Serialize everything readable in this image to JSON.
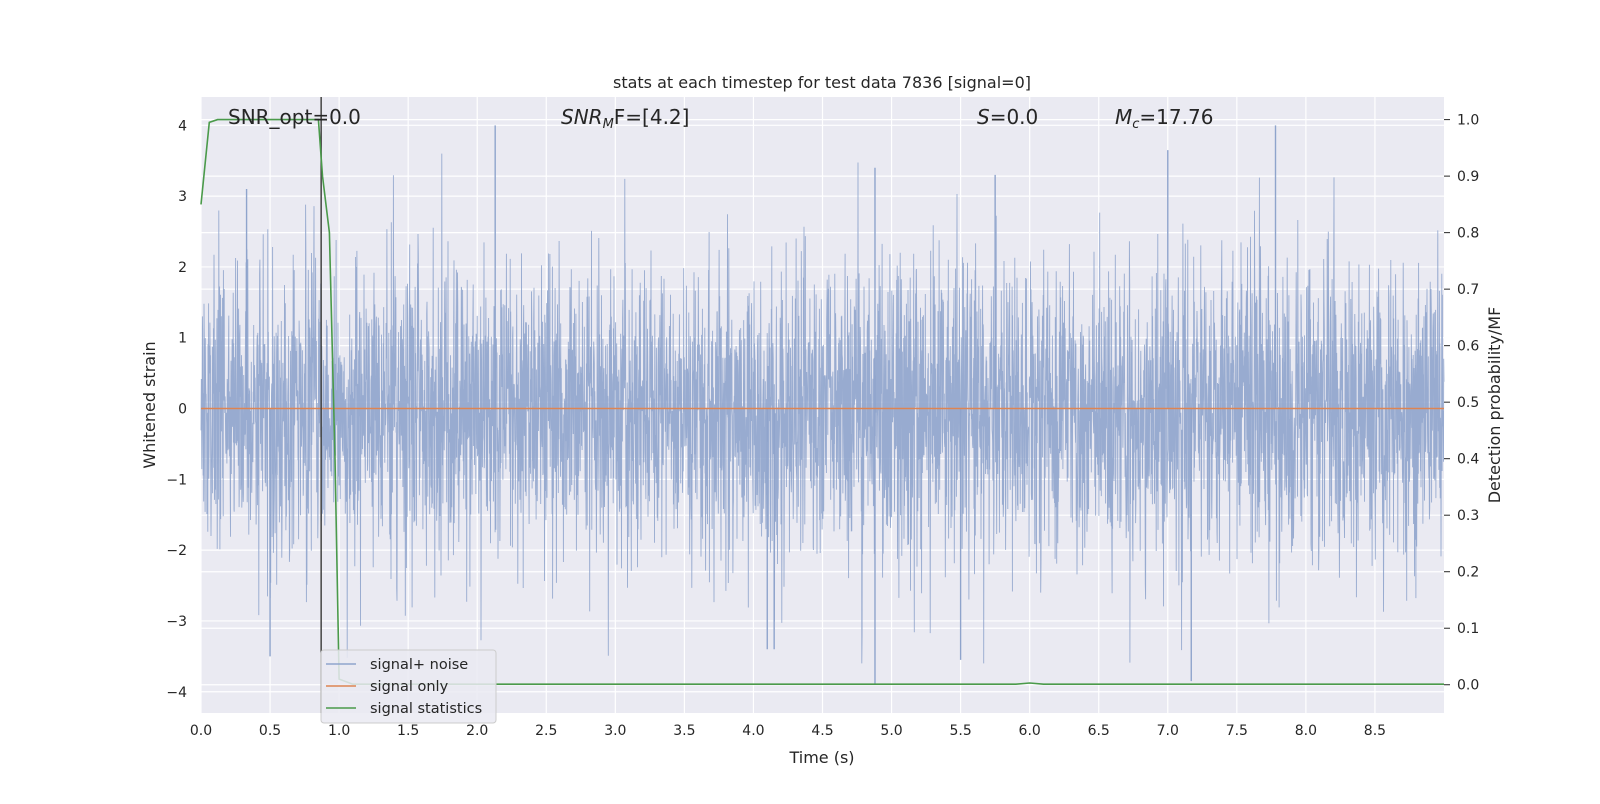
{
  "chart_data": {
    "type": "line",
    "title": "stats at each timestep for test data 7836 [signal=0]",
    "xlabel": "Time (s)",
    "ylabel_left": "Whitened strain",
    "ylabel_right": "Detection probability/MF",
    "xlim": [
      0.0,
      9.0
    ],
    "ylim_left": [
      -4.3,
      4.4
    ],
    "ylim_right": [
      -0.05,
      1.04
    ],
    "x_ticks": [
      "0.0",
      "0.5",
      "1.0",
      "1.5",
      "2.0",
      "2.5",
      "3.0",
      "3.5",
      "4.0",
      "4.5",
      "5.0",
      "5.5",
      "6.0",
      "6.5",
      "7.0",
      "7.5",
      "8.0",
      "8.5"
    ],
    "y_ticks_left": [
      "4",
      "3",
      "2",
      "1",
      "0",
      "−1",
      "−2",
      "−3",
      "−4"
    ],
    "y_ticks_right": [
      "1.0",
      "0.9",
      "0.8",
      "0.7",
      "0.6",
      "0.5",
      "0.4",
      "0.3",
      "0.2",
      "0.1",
      "0.0"
    ],
    "grid": true,
    "legend_placement": "lower-left",
    "vertical_marker_x": 0.87,
    "annotations": {
      "snr_opt": "SNR_opt=0.0",
      "snr_mf_main": "SNR",
      "snr_mf_sub": "M",
      "snr_mf_tail": "F=[4.2]",
      "s_main": "S",
      "s_tail": "=0.0",
      "mc_main": "M",
      "mc_sub": "c",
      "mc_tail": "=17.76"
    },
    "series": [
      {
        "name": "signal+ noise",
        "axis": "left",
        "color": "#8fa4cc",
        "description": "whitened strain noise spanning 0 to 9 s",
        "peaks": [
          {
            "x": 2.13,
            "y": 4.0
          },
          {
            "x": 7.78,
            "y": 4.0
          },
          {
            "x": 7.0,
            "y": 3.65
          },
          {
            "x": 4.88,
            "y": 3.4
          },
          {
            "x": 5.75,
            "y": 3.3
          },
          {
            "x": 0.33,
            "y": 3.1
          },
          {
            "x": 4.88,
            "y": -3.9
          },
          {
            "x": 7.17,
            "y": -3.85
          },
          {
            "x": 0.5,
            "y": -3.5
          },
          {
            "x": 5.5,
            "y": -3.55
          },
          {
            "x": 4.1,
            "y": -3.4
          },
          {
            "x": 4.15,
            "y": -3.4
          }
        ]
      },
      {
        "name": "signal only",
        "axis": "left",
        "color": "#dd8452",
        "x": [
          0.0,
          9.0
        ],
        "y": [
          0.0,
          0.0
        ]
      },
      {
        "name": "signal statistics",
        "axis": "right",
        "color": "#4a9a4a",
        "x": [
          0.0,
          0.06,
          0.12,
          0.2,
          0.4,
          0.6,
          0.85,
          0.88,
          0.93,
          0.97,
          1.0,
          1.1,
          2.0,
          3.0,
          4.0,
          5.0,
          5.9,
          6.0,
          6.1,
          7.0,
          8.0,
          9.0
        ],
        "y": [
          0.85,
          0.995,
          1.0,
          1.0,
          1.0,
          1.0,
          1.0,
          0.9,
          0.8,
          0.4,
          0.01,
          0.001,
          0.001,
          0.001,
          0.001,
          0.001,
          0.001,
          0.003,
          0.001,
          0.001,
          0.001,
          0.001
        ]
      }
    ]
  }
}
